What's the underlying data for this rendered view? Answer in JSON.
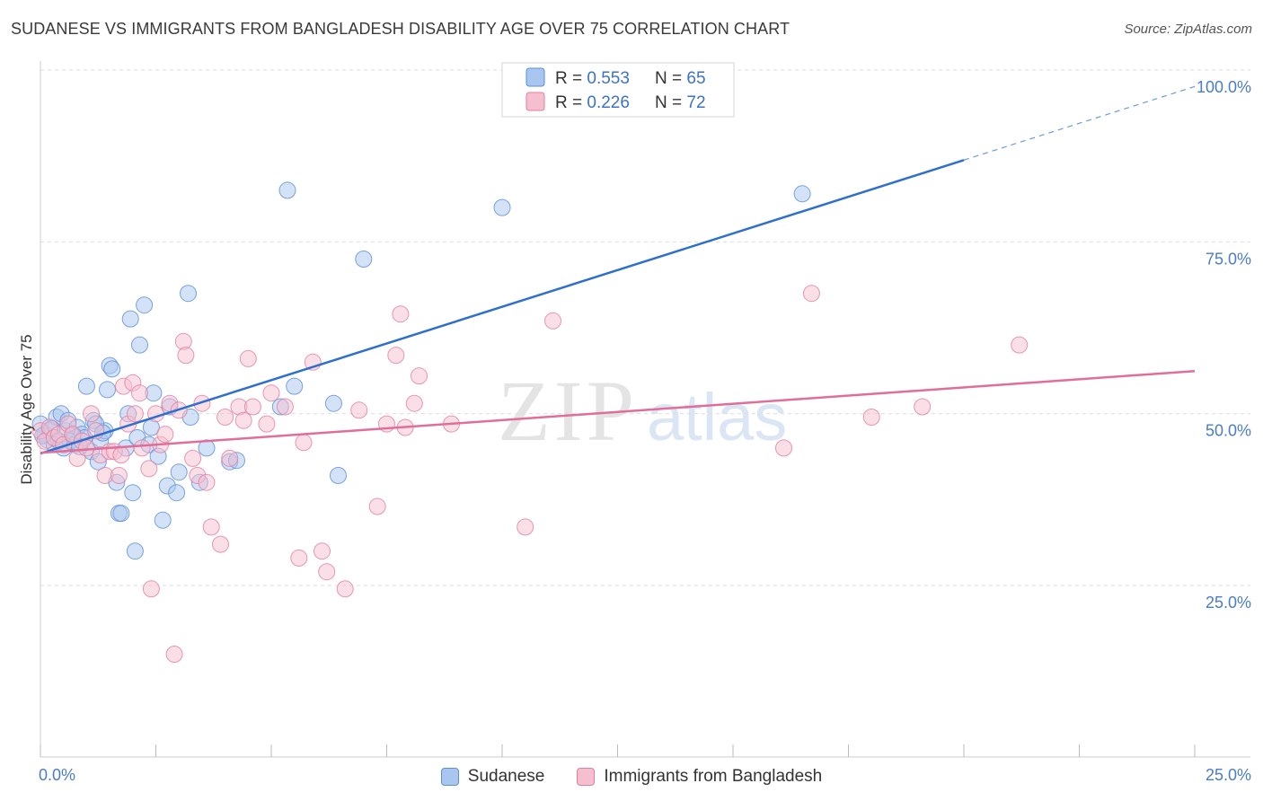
{
  "title": "SUDANESE VS IMMIGRANTS FROM BANGLADESH DISABILITY AGE OVER 75 CORRELATION CHART",
  "source": "Source: ZipAtlas.com",
  "watermark": {
    "zip": "ZIP",
    "atlas": "atlas"
  },
  "colors": {
    "blue_fill": "#a9c6f0",
    "blue_stroke": "#5a8fd8",
    "blue_line": "#2f6fcf",
    "pink_fill": "#f6bfd0",
    "pink_stroke": "#e07fa0",
    "pink_line": "#e06e99",
    "tick_text": "#4a7cc7",
    "grid": "#dddddd"
  },
  "legend": {
    "rows": [
      {
        "r_label": "R = ",
        "r_value": "0.553",
        "n_label": "N = ",
        "n_value": "65"
      },
      {
        "r_label": "R = ",
        "r_value": "0.226",
        "n_label": "N = ",
        "n_value": "72"
      }
    ]
  },
  "chart_data": {
    "type": "scatter",
    "title": "SUDANESE VS IMMIGRANTS FROM BANGLADESH DISABILITY AGE OVER 75 CORRELATION CHART",
    "xlabel": "",
    "ylabel": "Disability Age Over 75",
    "xlim": [
      0,
      25
    ],
    "ylim": [
      0,
      105
    ],
    "x_ticks": [
      0,
      25
    ],
    "x_tick_labels": [
      "0.0%",
      "25.0%"
    ],
    "y_ticks": [
      25,
      50,
      75,
      100
    ],
    "y_tick_labels": [
      "25.0%",
      "50.0%",
      "75.0%",
      "100.0%"
    ],
    "grid": true,
    "legend_position": "top-center",
    "series": [
      {
        "name": "Sudanese",
        "r": 0.553,
        "n": 65,
        "trend": {
          "x_start": 0,
          "y_start": 44.2,
          "x_solid_end": 20.0,
          "y_solid_end": 86.9,
          "x_end": 25,
          "y_end": 97.6
        },
        "points": [
          [
            0.0,
            48.5
          ],
          [
            0.1,
            47.0
          ],
          [
            0.15,
            46.2
          ],
          [
            0.2,
            47.6
          ],
          [
            0.3,
            45.5
          ],
          [
            0.35,
            49.5
          ],
          [
            0.45,
            50.0
          ],
          [
            0.5,
            45.0
          ],
          [
            0.55,
            47.5
          ],
          [
            0.6,
            49.0
          ],
          [
            0.65,
            46.0
          ],
          [
            0.75,
            45.5
          ],
          [
            0.8,
            48.0
          ],
          [
            0.9,
            47.0
          ],
          [
            0.95,
            46.5
          ],
          [
            1.0,
            54.0
          ],
          [
            1.1,
            44.5
          ],
          [
            1.15,
            49.0
          ],
          [
            1.25,
            43.0
          ],
          [
            1.3,
            46.0
          ],
          [
            1.4,
            47.5
          ],
          [
            1.45,
            53.5
          ],
          [
            1.5,
            57.0
          ],
          [
            1.55,
            56.5
          ],
          [
            1.65,
            40.0
          ],
          [
            1.7,
            35.5
          ],
          [
            1.75,
            35.5
          ],
          [
            1.85,
            45.0
          ],
          [
            1.9,
            50.0
          ],
          [
            1.95,
            63.8
          ],
          [
            2.0,
            38.5
          ],
          [
            2.05,
            30.0
          ],
          [
            2.1,
            46.5
          ],
          [
            2.15,
            60.0
          ],
          [
            2.25,
            65.8
          ],
          [
            2.35,
            45.5
          ],
          [
            2.45,
            53.0
          ],
          [
            2.55,
            43.8
          ],
          [
            2.65,
            34.5
          ],
          [
            2.75,
            39.5
          ],
          [
            2.8,
            51.0
          ],
          [
            2.95,
            38.5
          ],
          [
            3.0,
            41.5
          ],
          [
            3.2,
            67.5
          ],
          [
            3.25,
            49.5
          ],
          [
            3.45,
            40.0
          ],
          [
            3.6,
            45.0
          ],
          [
            4.1,
            43.0
          ],
          [
            4.25,
            43.2
          ],
          [
            5.2,
            51.0
          ],
          [
            5.35,
            82.5
          ],
          [
            5.5,
            54.0
          ],
          [
            6.35,
            51.5
          ],
          [
            6.45,
            41.0
          ],
          [
            7.0,
            72.5
          ],
          [
            10.0,
            80.0
          ],
          [
            16.5,
            82.0
          ],
          [
            0.05,
            46.8
          ],
          [
            0.25,
            47.8
          ],
          [
            0.4,
            46.0
          ],
          [
            0.7,
            46.8
          ],
          [
            1.2,
            48.5
          ],
          [
            1.35,
            47.2
          ],
          [
            2.4,
            48.0
          ],
          [
            0.85,
            45.2
          ]
        ]
      },
      {
        "name": "Immigrants from Bangladesh",
        "r": 0.226,
        "n": 72,
        "trend": {
          "x_start": 0,
          "y_start": 44.3,
          "x_end": 25,
          "y_end": 56.2
        },
        "points": [
          [
            0.0,
            47.5
          ],
          [
            0.1,
            46.0
          ],
          [
            0.2,
            48.0
          ],
          [
            0.3,
            46.5
          ],
          [
            0.4,
            47.0
          ],
          [
            0.5,
            45.5
          ],
          [
            0.6,
            48.5
          ],
          [
            0.7,
            47.0
          ],
          [
            0.8,
            43.5
          ],
          [
            0.9,
            46.0
          ],
          [
            1.0,
            45.0
          ],
          [
            1.1,
            50.0
          ],
          [
            1.2,
            47.5
          ],
          [
            1.3,
            44.0
          ],
          [
            1.4,
            41.0
          ],
          [
            1.5,
            44.5
          ],
          [
            1.6,
            44.5
          ],
          [
            1.7,
            41.0
          ],
          [
            1.8,
            54.0
          ],
          [
            1.9,
            48.5
          ],
          [
            2.0,
            54.5
          ],
          [
            2.05,
            50.0
          ],
          [
            2.15,
            53.0
          ],
          [
            2.2,
            45.0
          ],
          [
            2.35,
            42.0
          ],
          [
            2.4,
            24.5
          ],
          [
            2.5,
            50.0
          ],
          [
            2.6,
            45.5
          ],
          [
            2.7,
            47.0
          ],
          [
            2.8,
            51.5
          ],
          [
            2.9,
            15.0
          ],
          [
            3.0,
            50.5
          ],
          [
            3.1,
            60.5
          ],
          [
            3.15,
            58.5
          ],
          [
            3.3,
            43.5
          ],
          [
            3.4,
            41.0
          ],
          [
            3.5,
            51.5
          ],
          [
            3.6,
            40.0
          ],
          [
            3.7,
            33.5
          ],
          [
            3.9,
            31.0
          ],
          [
            4.0,
            49.5
          ],
          [
            4.1,
            43.5
          ],
          [
            4.3,
            51.0
          ],
          [
            4.4,
            49.0
          ],
          [
            4.5,
            58.0
          ],
          [
            4.6,
            51.0
          ],
          [
            4.9,
            48.5
          ],
          [
            5.0,
            53.0
          ],
          [
            5.3,
            51.0
          ],
          [
            5.6,
            29.0
          ],
          [
            5.7,
            45.8
          ],
          [
            5.9,
            57.5
          ],
          [
            6.1,
            30.0
          ],
          [
            6.2,
            27.0
          ],
          [
            6.6,
            24.5
          ],
          [
            6.9,
            50.5
          ],
          [
            7.3,
            36.5
          ],
          [
            7.5,
            48.5
          ],
          [
            7.7,
            58.5
          ],
          [
            7.8,
            64.5
          ],
          [
            7.9,
            48.0
          ],
          [
            8.1,
            51.5
          ],
          [
            8.2,
            55.5
          ],
          [
            8.9,
            48.5
          ],
          [
            10.5,
            33.5
          ],
          [
            11.1,
            63.5
          ],
          [
            16.1,
            45.0
          ],
          [
            16.7,
            67.5
          ],
          [
            18.0,
            49.5
          ],
          [
            19.1,
            51.0
          ],
          [
            21.2,
            60.0
          ],
          [
            1.75,
            44.0
          ]
        ]
      }
    ]
  },
  "bottom_legend": {
    "items": [
      {
        "label": "Sudanese"
      },
      {
        "label": "Immigrants from Bangladesh"
      }
    ]
  }
}
